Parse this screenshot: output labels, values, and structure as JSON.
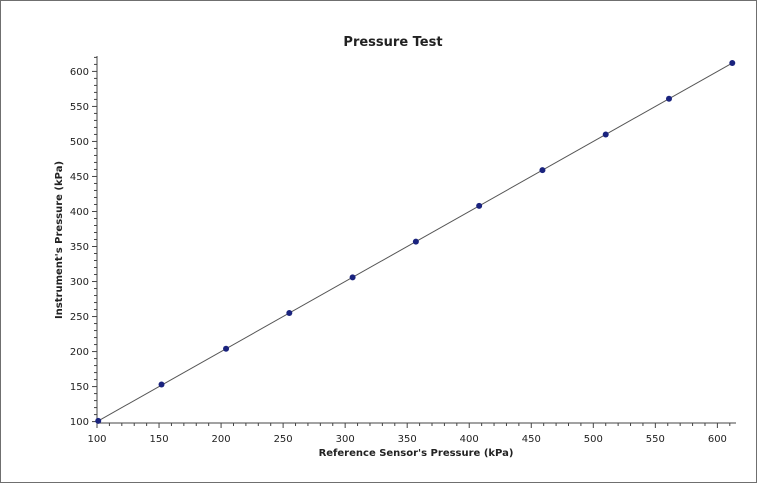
{
  "chart_data": {
    "type": "scatter",
    "title": "Pressure Test",
    "xlabel": "Reference Sensor's Pressure (kPa)",
    "ylabel": "Instrument's Pressure (kPa)",
    "xlim": [
      100,
      615
    ],
    "ylim": [
      98,
      622
    ],
    "xticks": [
      100,
      150,
      200,
      250,
      300,
      350,
      400,
      450,
      500,
      550,
      600
    ],
    "yticks": [
      100,
      150,
      200,
      250,
      300,
      350,
      400,
      450,
      500,
      550,
      600
    ],
    "grid": false,
    "legend": "none",
    "series": [
      {
        "x": [
          101,
          152,
          204,
          255,
          306,
          357,
          408,
          459,
          510,
          561,
          612
        ],
        "y": [
          101,
          153,
          204,
          255,
          306,
          357,
          408,
          459,
          510,
          561,
          612
        ],
        "marker_color": "#1a237e",
        "fit_line": [
          [
            101,
            101
          ],
          [
            612,
            612
          ]
        ],
        "fit_line_color": "#555555"
      }
    ]
  }
}
